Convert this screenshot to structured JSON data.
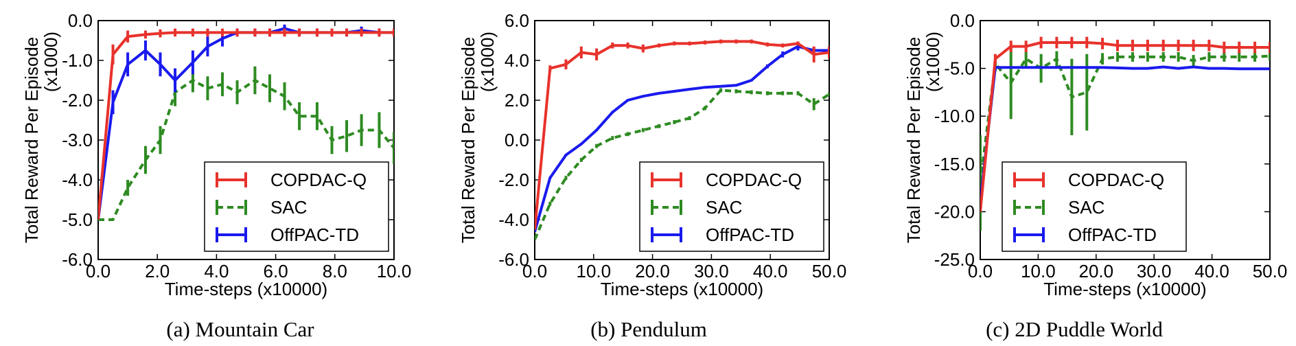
{
  "colors": {
    "COPDAC-Q": "#e8322c",
    "SAC": "#2e8b22",
    "OffPAC-TD": "#1a1aee"
  },
  "chart_data": [
    {
      "type": "line",
      "caption": "(a) Mountain Car",
      "xlabel": "Time-steps (x10000)",
      "ylabel": "Total Reward Per Episode",
      "ylabel2": "(x1000)",
      "xlim": [
        0,
        10
      ],
      "ylim": [
        -6,
        0
      ],
      "xticks": [
        "0.0",
        "2.0",
        "4.0",
        "6.0",
        "8.0",
        "10.0"
      ],
      "yticks": [
        "-6.0",
        "-5.0",
        "-4.0",
        "-3.0",
        "-2.0",
        "-1.0",
        "0.0"
      ],
      "legend_position": "lower-right",
      "series": [
        {
          "name": "COPDAC-Q",
          "style": "solid",
          "x": [
            0,
            0.5,
            1.0,
            1.6,
            2.1,
            2.6,
            3.2,
            3.7,
            4.2,
            4.7,
            5.3,
            5.8,
            6.3,
            6.8,
            7.4,
            7.9,
            8.4,
            8.9,
            9.5,
            10.0
          ],
          "y": [
            -5.0,
            -0.85,
            -0.4,
            -0.35,
            -0.32,
            -0.3,
            -0.3,
            -0.3,
            -0.3,
            -0.3,
            -0.3,
            -0.3,
            -0.3,
            -0.3,
            -0.3,
            -0.3,
            -0.3,
            -0.3,
            -0.3,
            -0.3
          ],
          "err": [
            0,
            0.25,
            0.15,
            0.1,
            0.1,
            0.1,
            0.1,
            0.1,
            0.1,
            0.1,
            0.1,
            0.1,
            0.1,
            0.1,
            0.1,
            0.1,
            0.1,
            0.1,
            0.1,
            0.1
          ]
        },
        {
          "name": "SAC",
          "style": "dashed",
          "x": [
            0,
            0.5,
            1.0,
            1.6,
            2.1,
            2.6,
            3.2,
            3.7,
            4.2,
            4.7,
            5.3,
            5.8,
            6.3,
            6.8,
            7.4,
            7.9,
            8.4,
            8.9,
            9.5,
            10.0
          ],
          "y": [
            -5.0,
            -5.0,
            -4.2,
            -3.5,
            -3.0,
            -1.8,
            -1.5,
            -1.7,
            -1.6,
            -1.8,
            -1.5,
            -1.7,
            -1.9,
            -2.4,
            -2.4,
            -3.0,
            -2.9,
            -2.75,
            -2.75,
            -3.2
          ],
          "err": [
            0,
            0,
            0.2,
            0.35,
            0.35,
            0.35,
            0.3,
            0.3,
            0.3,
            0.3,
            0.35,
            0.35,
            0.35,
            0.35,
            0.35,
            0.35,
            0.4,
            0.4,
            0.45,
            0.4
          ]
        },
        {
          "name": "OffPAC-TD",
          "style": "solid",
          "x": [
            0,
            0.5,
            1.0,
            1.6,
            2.1,
            2.6,
            3.2,
            3.7,
            4.2,
            4.7,
            5.3,
            5.8,
            6.3,
            6.8,
            7.4,
            7.9,
            8.4,
            8.9,
            9.5,
            10.0
          ],
          "y": [
            -5.0,
            -2.05,
            -1.1,
            -0.75,
            -1.1,
            -1.5,
            -1.05,
            -0.65,
            -0.45,
            -0.3,
            -0.3,
            -0.3,
            -0.2,
            -0.3,
            -0.3,
            -0.3,
            -0.3,
            -0.25,
            -0.3,
            -0.3
          ],
          "err": [
            0,
            0.3,
            0.3,
            0.25,
            0.3,
            0.3,
            0.3,
            0.25,
            0.2,
            0.1,
            0.1,
            0.1,
            0.1,
            0.1,
            0.1,
            0.1,
            0.1,
            0.1,
            0.1,
            0.1
          ]
        }
      ]
    },
    {
      "type": "line",
      "caption": "(b) Pendulum",
      "xlabel": "Time-steps (x10000)",
      "ylabel": "Total Reward Per Episode",
      "ylabel2": "(x1000)",
      "xlim": [
        0,
        50
      ],
      "ylim": [
        -6,
        6
      ],
      "xticks": [
        "0.0",
        "10.0",
        "20.0",
        "30.0",
        "40.0",
        "50.0"
      ],
      "yticks": [
        "-6.0",
        "-4.0",
        "-2.0",
        "0.0",
        "2.0",
        "4.0",
        "6.0"
      ],
      "legend_position": "lower-right",
      "series": [
        {
          "name": "COPDAC-Q",
          "style": "solid",
          "x": [
            0,
            2.6,
            5.3,
            7.9,
            10.5,
            13.2,
            15.8,
            18.4,
            21.1,
            23.7,
            26.3,
            28.9,
            31.6,
            34.2,
            36.8,
            39.5,
            42.1,
            44.7,
            47.4,
            50.0
          ],
          "y": [
            -4.5,
            3.6,
            3.8,
            4.4,
            4.3,
            4.75,
            4.75,
            4.6,
            4.75,
            4.85,
            4.85,
            4.9,
            4.95,
            4.95,
            4.95,
            4.8,
            4.75,
            4.85,
            4.3,
            4.4
          ],
          "err": [
            0,
            0.15,
            0.25,
            0.3,
            0.3,
            0.15,
            0.15,
            0.2,
            0.1,
            0.1,
            0.1,
            0.1,
            0.1,
            0.1,
            0.1,
            0.1,
            0.1,
            0.1,
            0.4,
            0.3
          ]
        },
        {
          "name": "SAC",
          "style": "dashed",
          "x": [
            0,
            2.6,
            5.3,
            7.9,
            10.5,
            13.2,
            15.8,
            18.4,
            21.1,
            23.7,
            26.3,
            28.9,
            31.6,
            34.2,
            36.8,
            39.5,
            42.1,
            44.7,
            47.4,
            50.0
          ],
          "y": [
            -5.0,
            -3.2,
            -1.9,
            -1.0,
            -0.3,
            0.1,
            0.3,
            0.5,
            0.7,
            0.9,
            1.1,
            1.6,
            2.5,
            2.45,
            2.4,
            2.35,
            2.35,
            2.35,
            1.8,
            2.3
          ],
          "err": [
            0,
            0.1,
            0.1,
            0.1,
            0.1,
            0.1,
            0.1,
            0.1,
            0.1,
            0.1,
            0.1,
            0.1,
            0.1,
            0.1,
            0.1,
            0.1,
            0.1,
            0.1,
            0.3,
            0.1
          ]
        },
        {
          "name": "OffPAC-TD",
          "style": "solid",
          "x": [
            0,
            2.6,
            5.3,
            7.9,
            10.5,
            13.2,
            15.8,
            18.4,
            21.1,
            23.7,
            26.3,
            28.9,
            31.6,
            34.2,
            36.8,
            39.5,
            42.1,
            44.7,
            47.4,
            50.0
          ],
          "y": [
            -4.6,
            -1.9,
            -0.75,
            -0.2,
            0.5,
            1.4,
            2.0,
            2.2,
            2.35,
            2.45,
            2.55,
            2.65,
            2.7,
            2.75,
            3.0,
            3.7,
            4.3,
            4.7,
            4.5,
            4.5
          ],
          "err": [
            0,
            0.05,
            0.05,
            0.05,
            0.05,
            0.05,
            0.05,
            0.05,
            0.05,
            0.05,
            0.05,
            0.05,
            0.05,
            0.05,
            0.05,
            0.1,
            0.15,
            0.2,
            0.15,
            0.1
          ]
        }
      ]
    },
    {
      "type": "line",
      "caption": "(c) 2D Puddle World",
      "xlabel": "Time-steps (x10000)",
      "ylabel": "Total Reward Per Episode",
      "ylabel2": "(x1000)",
      "xlim": [
        0,
        50
      ],
      "ylim": [
        -25,
        0
      ],
      "xticks": [
        "0.0",
        "10.0",
        "20.0",
        "30.0",
        "40.0",
        "50.0"
      ],
      "yticks": [
        "-25.0",
        "-20.0",
        "-15.0",
        "-10.0",
        "-5.0",
        "0.0"
      ],
      "legend_position": "lower-right",
      "series": [
        {
          "name": "COPDAC-Q",
          "style": "solid",
          "x": [
            0,
            2.6,
            5.3,
            7.9,
            10.5,
            13.2,
            15.8,
            18.4,
            21.1,
            23.7,
            26.3,
            28.9,
            31.6,
            34.2,
            36.8,
            39.5,
            42.1,
            44.7,
            47.4,
            50.0
          ],
          "y": [
            -20.0,
            -4.0,
            -2.7,
            -2.7,
            -2.3,
            -2.3,
            -2.3,
            -2.3,
            -2.4,
            -2.6,
            -2.6,
            -2.6,
            -2.6,
            -2.6,
            -2.6,
            -2.6,
            -2.8,
            -2.8,
            -2.8,
            -2.8
          ],
          "err": [
            0,
            0.5,
            0.6,
            0.6,
            0.6,
            0.6,
            0.6,
            0.6,
            0.6,
            0.6,
            0.6,
            0.6,
            0.6,
            0.6,
            0.6,
            0.6,
            0.6,
            0.6,
            0.6,
            0.6
          ]
        },
        {
          "name": "SAC",
          "style": "dashed",
          "x": [
            0,
            2.6,
            5.3,
            7.9,
            10.5,
            13.2,
            15.8,
            18.4,
            21.1,
            23.7,
            26.3,
            28.9,
            31.6,
            34.2,
            36.8,
            39.5,
            42.1,
            44.7,
            47.4,
            50.0
          ],
          "y": [
            -17.0,
            -4.5,
            -6.5,
            -4.0,
            -5.0,
            -4.0,
            -8.0,
            -7.5,
            -4.0,
            -3.8,
            -3.8,
            -3.8,
            -3.8,
            -3.8,
            -4.2,
            -3.8,
            -3.8,
            -3.8,
            -3.8,
            -3.7
          ],
          "err": [
            5.0,
            0.8,
            3.8,
            0.8,
            1.5,
            0.8,
            4.0,
            4.0,
            0.6,
            0.5,
            0.5,
            0.5,
            0.5,
            0.5,
            0.6,
            0.5,
            0.5,
            0.5,
            0.5,
            0.5
          ]
        },
        {
          "name": "OffPAC-TD",
          "style": "solid",
          "x": [
            0,
            2.6,
            5.3,
            7.9,
            10.5,
            13.2,
            15.8,
            18.4,
            21.1,
            23.7,
            26.3,
            28.9,
            31.6,
            34.2,
            36.8,
            39.5,
            42.1,
            44.7,
            47.4,
            50.0
          ],
          "y": [
            -19.0,
            -4.9,
            -4.9,
            -4.9,
            -4.9,
            -4.9,
            -4.9,
            -4.9,
            -4.9,
            -4.95,
            -5.0,
            -5.0,
            -4.85,
            -5.0,
            -4.85,
            -5.0,
            -5.0,
            -5.05,
            -5.05,
            -5.05
          ],
          "err": [
            0,
            0.1,
            0.1,
            0.1,
            0.1,
            0.1,
            0.1,
            0.1,
            0.1,
            0.1,
            0.1,
            0.1,
            0.1,
            0.1,
            0.1,
            0.1,
            0.1,
            0.1,
            0.1,
            0.1
          ]
        }
      ]
    }
  ]
}
